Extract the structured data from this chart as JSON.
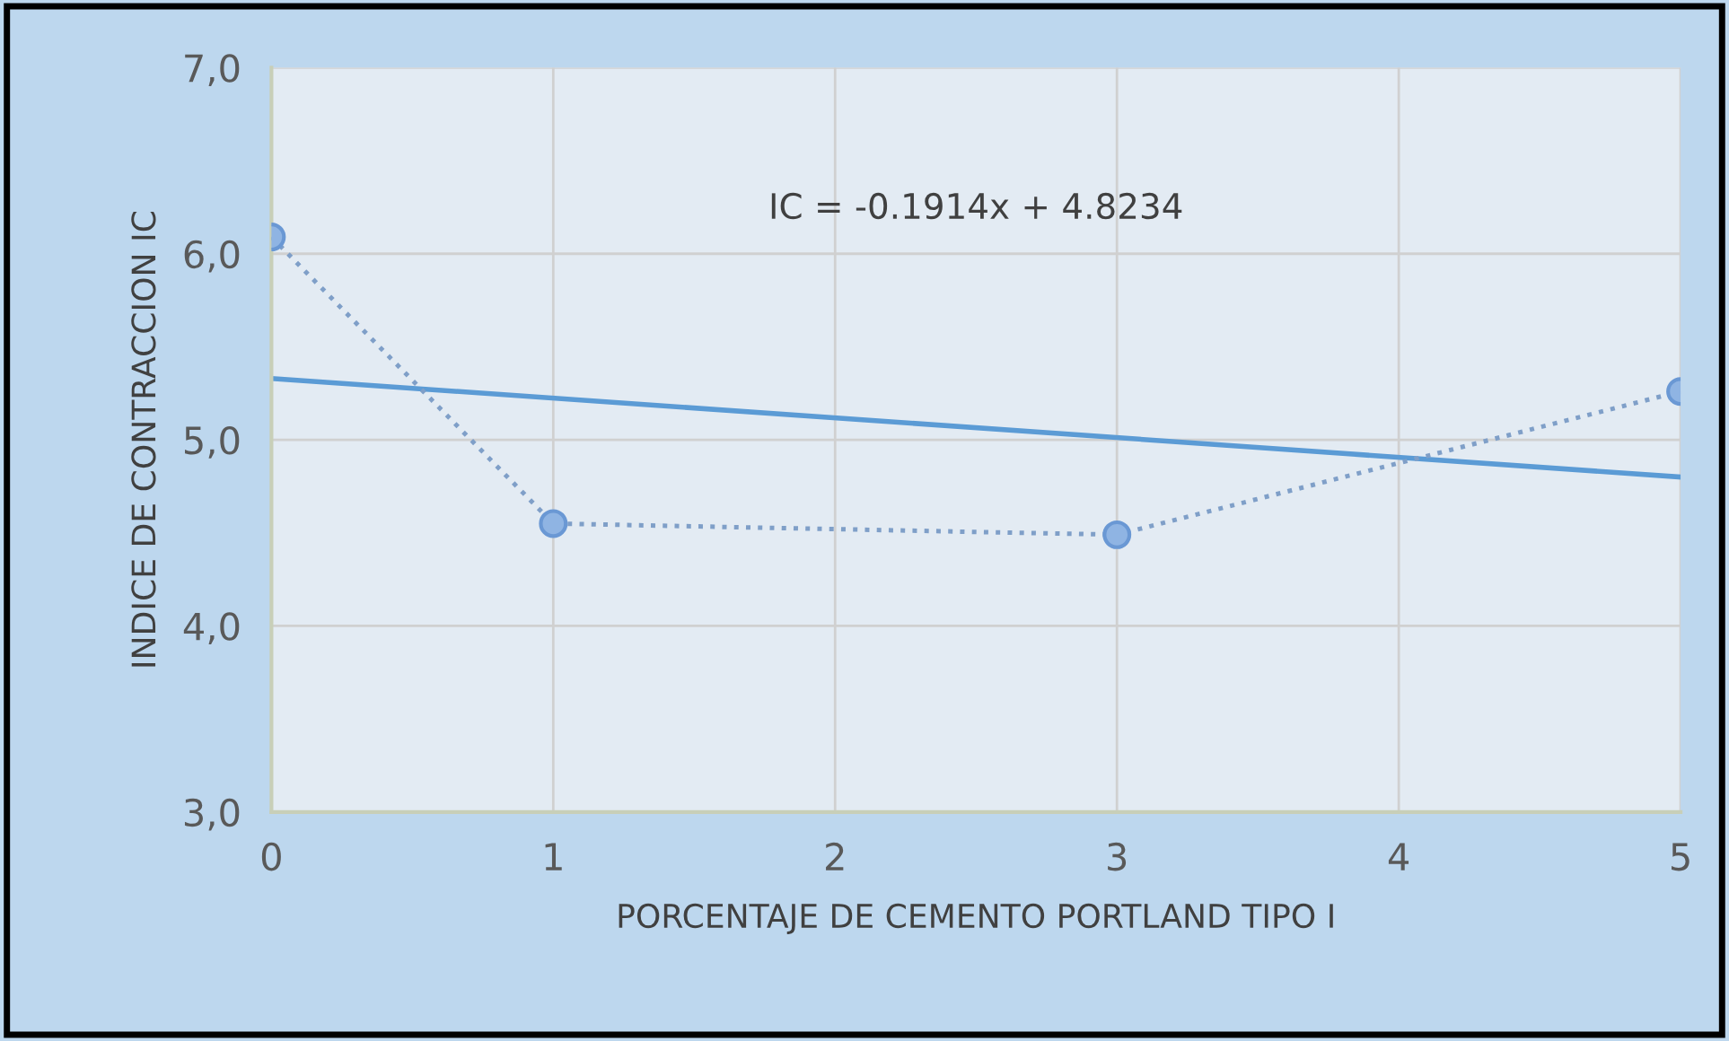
{
  "chart_data": {
    "type": "line",
    "xlabel": "PORCENTAJE DE CEMENTO PORTLAND TIPO I",
    "ylabel": "INDICE DE CONTRACCION IC",
    "annotations": [
      "IC = -0.1914x + 4.8234"
    ],
    "x": [
      0,
      1,
      3,
      5
    ],
    "series": [
      {
        "color": "#8fb4e3",
        "values": [
          6.09,
          4.55,
          4.49,
          5.26
        ],
        "marker": "circle",
        "line_style": "dotted"
      },
      {
        "color": "#5b9bd5",
        "x": [
          0,
          5
        ],
        "values": [
          5.33,
          4.8
        ],
        "marker": "none",
        "line_style": "solid"
      }
    ],
    "xlim": [
      0,
      5
    ],
    "xticks": [
      0,
      1,
      2,
      3,
      4,
      5
    ],
    "ylim": [
      3,
      7
    ],
    "yticks": [
      {
        "value": 3,
        "label": "3,0"
      },
      {
        "value": 4,
        "label": "4,0"
      },
      {
        "value": 5,
        "label": "5,0"
      },
      {
        "value": 6,
        "label": "6,0"
      },
      {
        "value": 7,
        "label": "7,0"
      }
    ],
    "grid": true,
    "legend": false
  }
}
